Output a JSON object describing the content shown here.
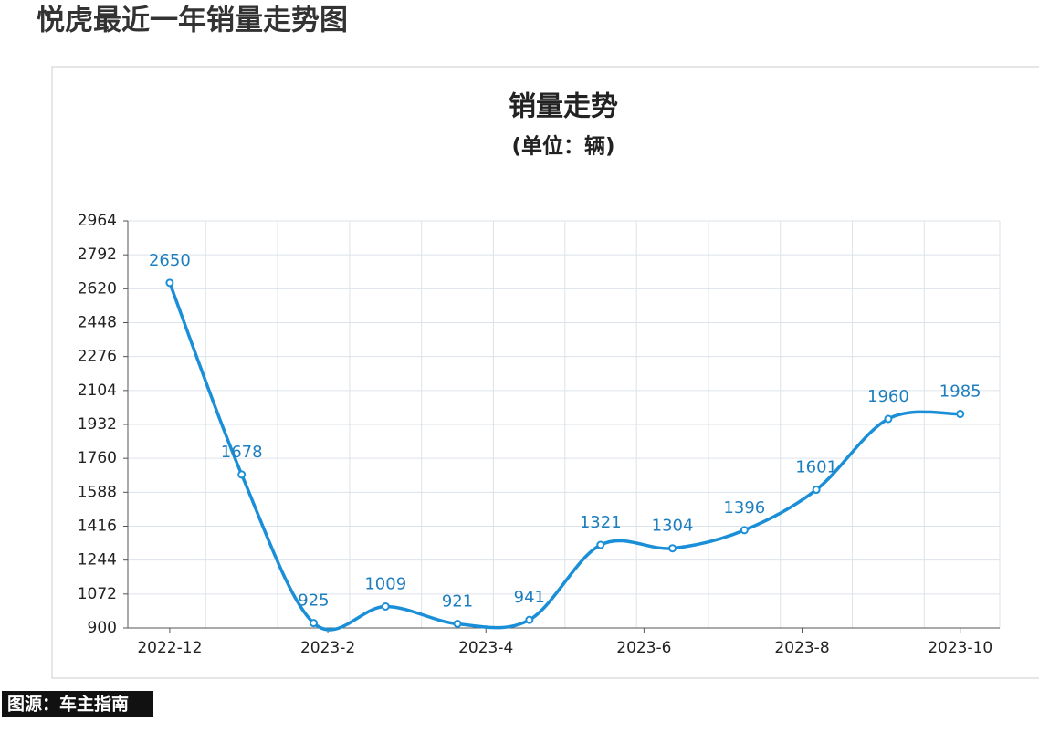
{
  "heading": "悦虎最近一年销量走势图",
  "source": "图源：车主指南",
  "chart_data": {
    "type": "line",
    "title": "销量走势",
    "subtitle": "(单位：辆)",
    "x": [
      0,
      0.91,
      1.82,
      2.73,
      3.64,
      4.55,
      5.45,
      6.36,
      7.27,
      8.18,
      9.09,
      10
    ],
    "series": [
      {
        "name": "销量",
        "color": "#1a8fd8",
        "values": [
          2650,
          1678,
          925,
          1009,
          921,
          941,
          1321,
          1304,
          1396,
          1601,
          1960,
          1985
        ]
      }
    ],
    "xlim": [
      -0.53,
      10.5
    ],
    "xticks": [
      {
        "value": 0,
        "label": "2022-12"
      },
      {
        "value": 2,
        "label": "2023-2"
      },
      {
        "value": 4,
        "label": "2023-4"
      },
      {
        "value": 6,
        "label": "2023-6"
      },
      {
        "value": 8,
        "label": "2023-8"
      },
      {
        "value": 10,
        "label": "2023-10"
      }
    ],
    "ylim": [
      900,
      2964
    ],
    "yticks": [
      900,
      1072,
      1244,
      1416,
      1588,
      1760,
      1932,
      2104,
      2276,
      2448,
      2620,
      2792,
      2964
    ],
    "grid": true,
    "smooth": true
  }
}
